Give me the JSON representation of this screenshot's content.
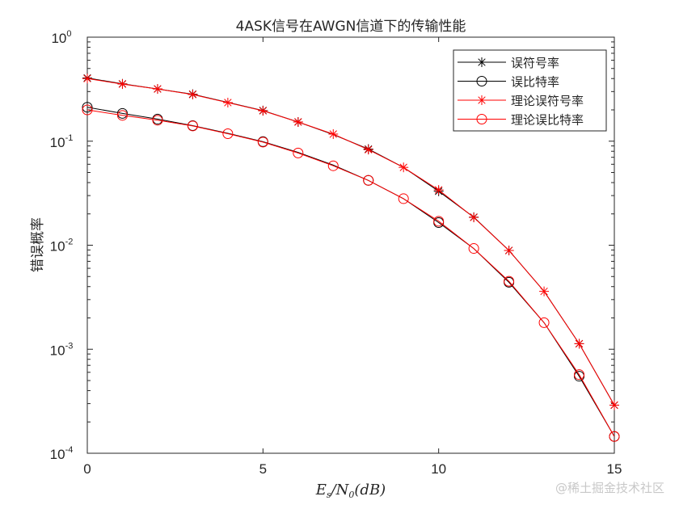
{
  "chart_data": {
    "type": "line",
    "title": "4ASK信号在AWGN信道下的传输性能",
    "xlabel": "E_s/N_0(dB)",
    "ylabel": "错误概率",
    "xlim": [
      0,
      15
    ],
    "ylim": [
      0.0001,
      1
    ],
    "yscale": "log",
    "xticks": [
      0,
      5,
      10,
      15
    ],
    "yticks": [
      "10^0",
      "10^-1",
      "10^-2",
      "10^-3",
      "10^-4"
    ],
    "grid": false,
    "legend_position": "upper right",
    "x": [
      0,
      1,
      2,
      3,
      4,
      5,
      6,
      7,
      8,
      9,
      10,
      11,
      12,
      13,
      14,
      15
    ],
    "series": [
      {
        "name": "误符号率",
        "color": "#000000",
        "marker": "*",
        "marker_x": [
          0,
          1,
          2,
          3,
          5,
          6,
          8,
          10,
          11,
          12,
          14,
          15
        ],
        "values": [
          0.405,
          0.356,
          0.318,
          0.283,
          0.236,
          0.197,
          0.153,
          0.116,
          0.084,
          0.056,
          0.033,
          0.0186,
          0.0089,
          0.0036,
          0.00113,
          0.00029
        ]
      },
      {
        "name": "误比特率",
        "color": "#000000",
        "marker": "o",
        "marker_x": [
          0,
          1,
          2,
          3,
          5,
          8,
          10,
          12,
          14,
          15
        ],
        "values": [
          0.212,
          0.185,
          0.163,
          0.141,
          0.119,
          0.099,
          0.078,
          0.059,
          0.042,
          0.028,
          0.0165,
          0.0093,
          0.0044,
          0.0018,
          0.00055,
          0.000145
        ]
      },
      {
        "name": "理论误符号率",
        "color": "#ff0000",
        "marker": "*",
        "values": [
          0.4,
          0.354,
          0.318,
          0.281,
          0.235,
          0.196,
          0.153,
          0.117,
          0.083,
          0.056,
          0.034,
          0.0185,
          0.0089,
          0.0036,
          0.00113,
          0.00029
        ]
      },
      {
        "name": "理论误比特率",
        "color": "#ff0000",
        "marker": "o",
        "values": [
          0.2,
          0.177,
          0.159,
          0.14,
          0.118,
          0.098,
          0.077,
          0.058,
          0.042,
          0.028,
          0.017,
          0.0093,
          0.0045,
          0.0018,
          0.00057,
          0.000145
        ]
      }
    ]
  },
  "watermark": "@稀土掘金技术社区"
}
